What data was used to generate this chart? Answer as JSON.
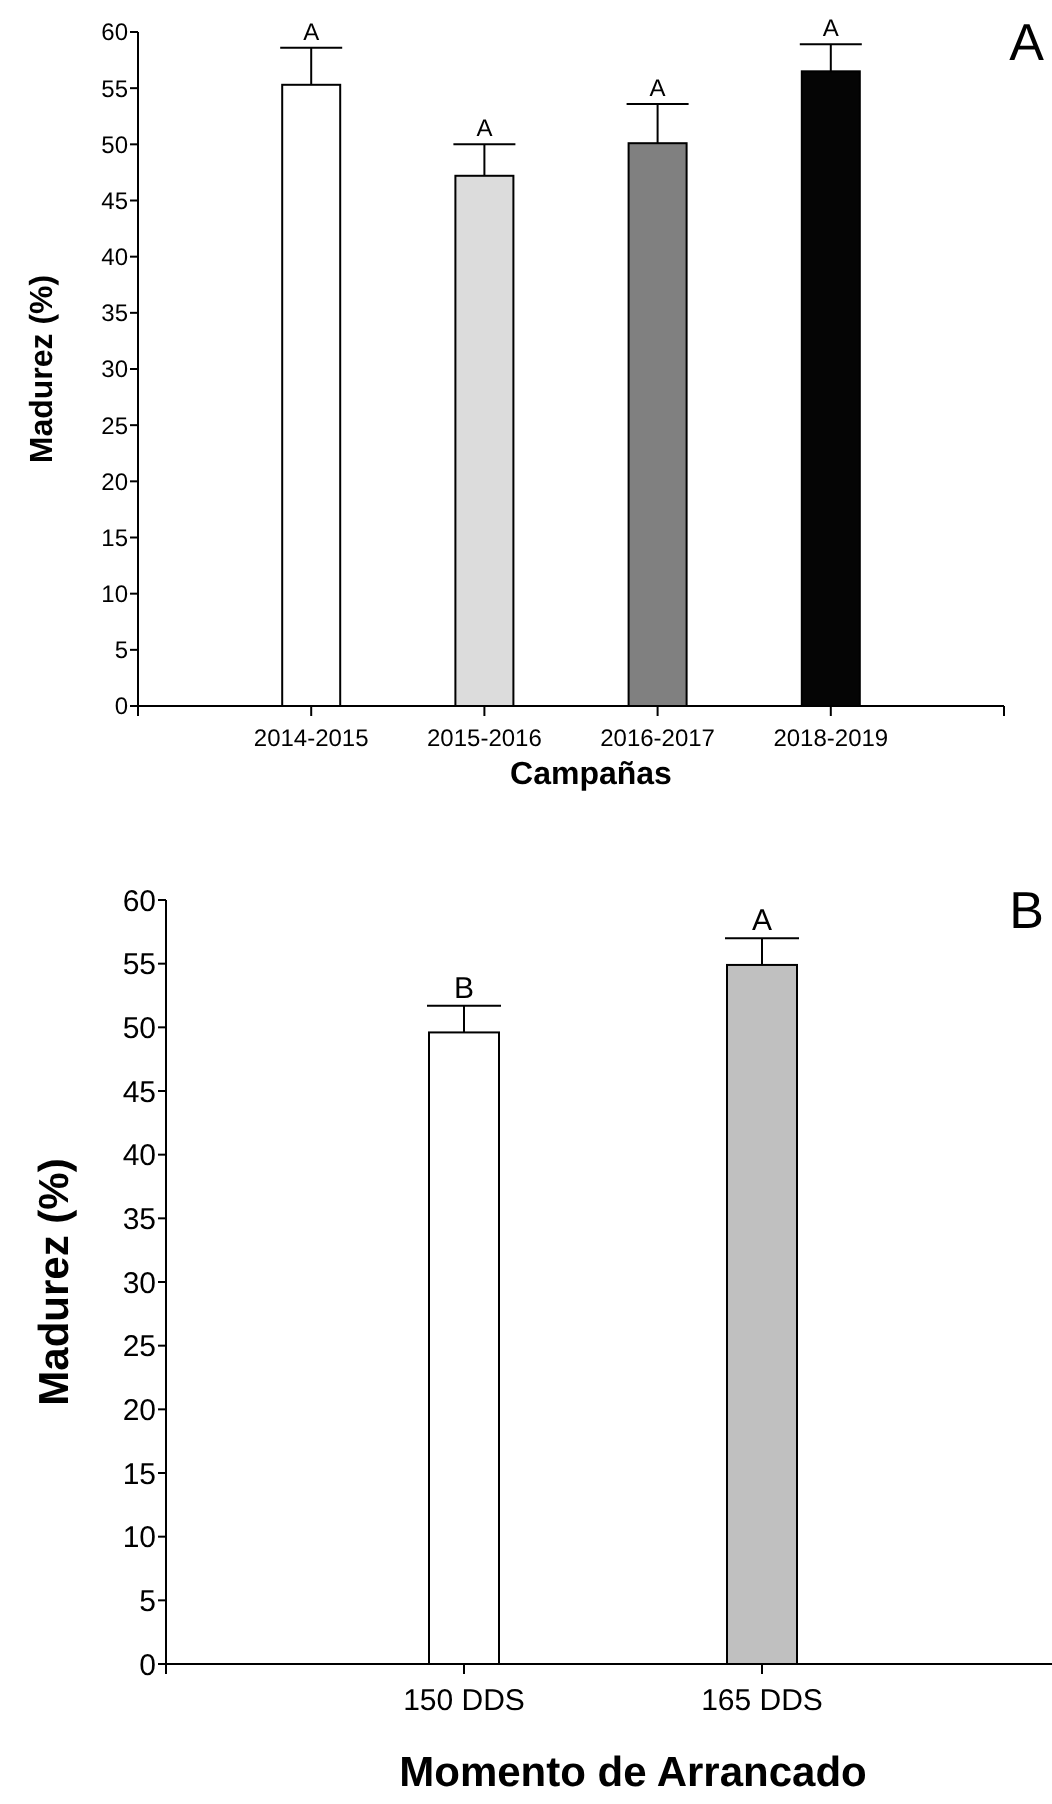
{
  "chart_data": [
    {
      "type": "bar",
      "title": "A",
      "xlabel": "Campañas",
      "ylabel": "Madurez (%)",
      "categories": [
        "2014-2015",
        "2015-2016",
        "2016-2017",
        "2018-2019"
      ],
      "values": [
        55.3,
        47.2,
        50.1,
        56.5
      ],
      "colors": [
        "#ffffff",
        "#dcdcdc",
        "#808080",
        "#050505"
      ],
      "errors": [
        [
          55.3,
          58.6
        ],
        [
          47.2,
          50.0
        ],
        [
          50.1,
          53.6
        ],
        [
          56.5,
          58.9
        ]
      ],
      "ylim": [
        0,
        60
      ],
      "yticks": [
        0,
        5,
        10,
        15,
        20,
        25,
        30,
        35,
        40,
        45,
        50,
        55,
        60
      ],
      "annotations": [
        {
          "text": "A",
          "x": "2014-2015",
          "y": 58.6
        },
        {
          "text": "A",
          "x": "2015-2016",
          "y": 50.0
        },
        {
          "text": "A",
          "x": "2016-2017",
          "y": 53.6
        },
        {
          "text": "A",
          "x": "2018-2019",
          "y": 58.9
        }
      ]
    },
    {
      "type": "bar",
      "title": "B",
      "xlabel": "Momento de Arrancado",
      "ylabel": "Madurez (%)",
      "categories": [
        "150 DDS",
        "165 DDS"
      ],
      "values": [
        49.6,
        54.9
      ],
      "colors": [
        "#ffffff",
        "#c0c0c0"
      ],
      "errors": [
        [
          49.6,
          51.7
        ],
        [
          54.9,
          57.0
        ]
      ],
      "ylim": [
        0,
        60
      ],
      "yticks": [
        0,
        5,
        10,
        15,
        20,
        25,
        30,
        35,
        40,
        45,
        50,
        55,
        60
      ],
      "annotations": [
        {
          "text": "B",
          "x": "150 DDS",
          "y": 51.7
        },
        {
          "text": "A",
          "x": "165 DDS",
          "y": 57.0
        }
      ]
    }
  ]
}
